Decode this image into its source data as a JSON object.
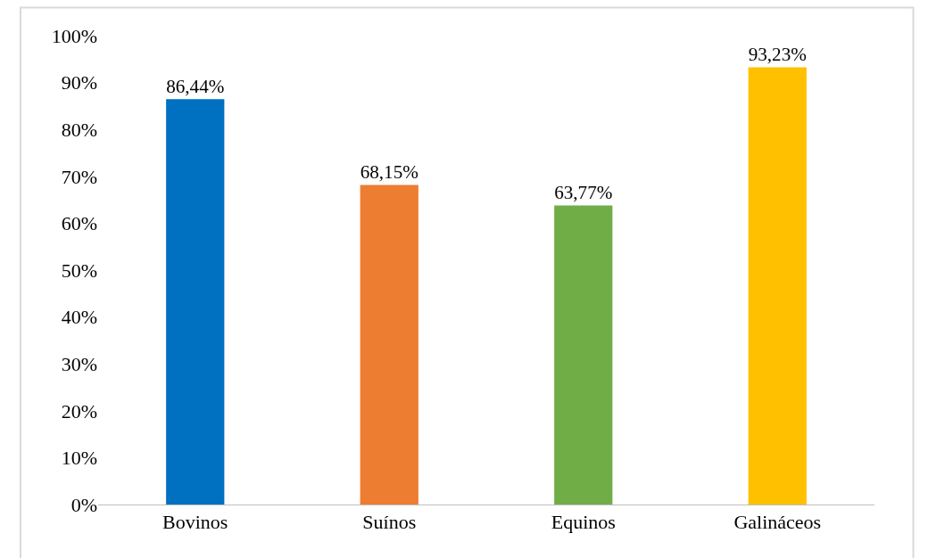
{
  "chart_data": {
    "type": "bar",
    "categories": [
      "Bovinos",
      "Suínos",
      "Equinos",
      "Galináceos"
    ],
    "values": [
      86.44,
      68.15,
      63.77,
      93.23
    ],
    "colors": [
      "#0070c0",
      "#ed7d31",
      "#70ad47",
      "#ffc000"
    ],
    "value_labels": [
      "86,44%",
      "68,15%",
      "63,77%",
      "93,23%"
    ],
    "ylim": [
      0,
      100
    ],
    "yticks": [
      {
        "value": 0,
        "label": "0%"
      },
      {
        "value": 10,
        "label": "10%"
      },
      {
        "value": 20,
        "label": "20%"
      },
      {
        "value": 30,
        "label": "30%"
      },
      {
        "value": 40,
        "label": "40%"
      },
      {
        "value": 50,
        "label": "50%"
      },
      {
        "value": 60,
        "label": "60%"
      },
      {
        "value": 70,
        "label": "70%"
      },
      {
        "value": 80,
        "label": "80%"
      },
      {
        "value": 90,
        "label": "90%"
      },
      {
        "value": 100,
        "label": "100%"
      }
    ]
  }
}
